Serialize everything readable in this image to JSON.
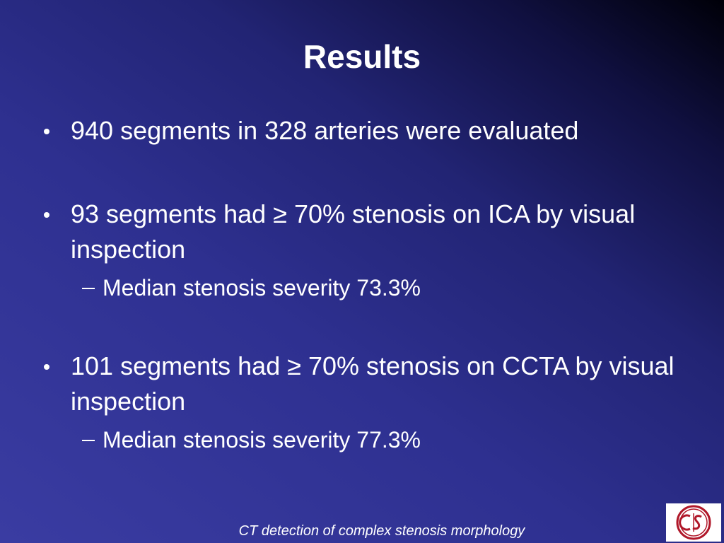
{
  "title": "Results",
  "bullets": [
    {
      "text": "940 segments in 328 arteries were evaluated",
      "sub": []
    },
    {
      "text": "93 segments had ≥ 70% stenosis on ICA by visual inspection",
      "sub": [
        "Median stenosis severity 73.3%"
      ]
    },
    {
      "text": "101 segments had ≥ 70% stenosis on CCTA by visual inspection",
      "sub": [
        "Median stenosis severity 77.3%"
      ]
    }
  ],
  "footer": "CT detection of complex stenosis morphology"
}
